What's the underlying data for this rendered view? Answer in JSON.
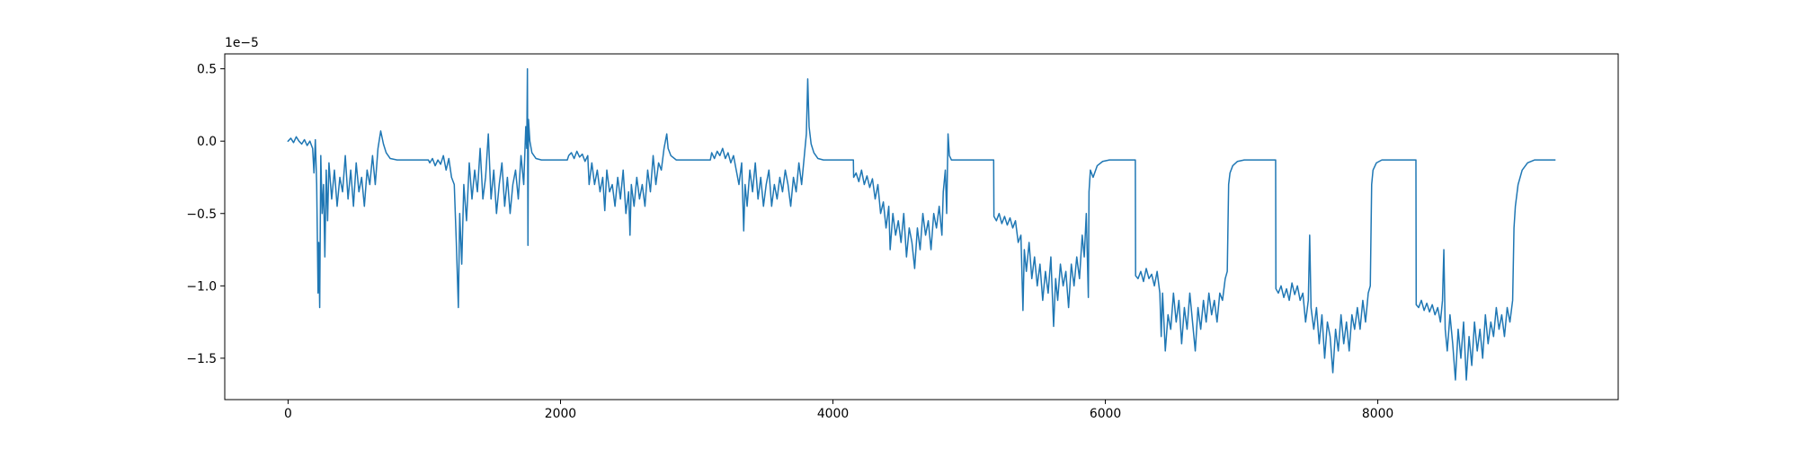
{
  "chart_data": {
    "type": "line",
    "offset_text": "1e−5",
    "x": [
      0,
      20,
      40,
      60,
      80,
      100,
      120,
      140,
      160,
      180,
      190,
      200,
      210,
      220,
      225,
      232,
      240,
      250,
      260,
      270,
      280,
      290,
      300,
      320,
      340,
      360,
      380,
      400,
      420,
      440,
      460,
      480,
      500,
      520,
      540,
      560,
      580,
      600,
      620,
      640,
      660,
      680,
      700,
      720,
      750,
      800,
      1030,
      1040,
      1060,
      1080,
      1100,
      1120,
      1140,
      1160,
      1180,
      1200,
      1220,
      1235,
      1250,
      1260,
      1275,
      1290,
      1310,
      1330,
      1350,
      1370,
      1390,
      1410,
      1430,
      1450,
      1470,
      1490,
      1510,
      1530,
      1550,
      1570,
      1590,
      1610,
      1630,
      1650,
      1670,
      1690,
      1710,
      1730,
      1745,
      1752,
      1757,
      1761,
      1765,
      1775,
      1790,
      1820,
      1860,
      2050,
      2060,
      2080,
      2100,
      2120,
      2140,
      2160,
      2180,
      2200,
      2210,
      2230,
      2250,
      2270,
      2290,
      2310,
      2325,
      2340,
      2360,
      2380,
      2400,
      2420,
      2440,
      2460,
      2480,
      2500,
      2510,
      2520,
      2540,
      2560,
      2580,
      2600,
      2620,
      2640,
      2660,
      2680,
      2700,
      2720,
      2740,
      2760,
      2780,
      2790,
      2810,
      2850,
      3100,
      3110,
      3130,
      3150,
      3170,
      3190,
      3210,
      3230,
      3250,
      3270,
      3290,
      3310,
      3330,
      3345,
      3355,
      3370,
      3390,
      3410,
      3430,
      3450,
      3470,
      3490,
      3510,
      3530,
      3550,
      3570,
      3590,
      3610,
      3630,
      3650,
      3670,
      3690,
      3710,
      3730,
      3750,
      3770,
      3790,
      3805,
      3815,
      3825,
      3840,
      3860,
      3890,
      3930,
      4150,
      4152,
      4170,
      4190,
      4210,
      4230,
      4250,
      4270,
      4290,
      4310,
      4330,
      4350,
      4370,
      4390,
      4410,
      4420,
      4440,
      4460,
      4480,
      4500,
      4520,
      4540,
      4560,
      4580,
      4600,
      4620,
      4640,
      4660,
      4680,
      4700,
      4720,
      4740,
      4760,
      4780,
      4800,
      4810,
      4825,
      4835,
      4845,
      4855,
      4870,
      5180,
      5182,
      5200,
      5220,
      5240,
      5260,
      5280,
      5300,
      5320,
      5340,
      5360,
      5380,
      5395,
      5405,
      5420,
      5440,
      5460,
      5480,
      5500,
      5520,
      5540,
      5560,
      5580,
      5600,
      5620,
      5635,
      5650,
      5670,
      5690,
      5710,
      5730,
      5750,
      5770,
      5790,
      5810,
      5830,
      5845,
      5860,
      5875,
      5880,
      5890,
      5910,
      5940,
      5980,
      6030,
      6220,
      6222,
      6240,
      6260,
      6280,
      6300,
      6320,
      6340,
      6360,
      6380,
      6400,
      6410,
      6420,
      6440,
      6460,
      6480,
      6500,
      6520,
      6540,
      6560,
      6580,
      6600,
      6620,
      6640,
      6660,
      6680,
      6700,
      6720,
      6740,
      6760,
      6780,
      6800,
      6820,
      6840,
      6860,
      6880,
      6895,
      6905,
      6915,
      6935,
      6970,
      7020,
      7250,
      7252,
      7270,
      7290,
      7310,
      7330,
      7350,
      7370,
      7390,
      7410,
      7430,
      7450,
      7470,
      7490,
      7500,
      7510,
      7530,
      7550,
      7570,
      7590,
      7610,
      7630,
      7650,
      7670,
      7690,
      7710,
      7730,
      7750,
      7770,
      7790,
      7810,
      7830,
      7850,
      7870,
      7890,
      7910,
      7930,
      7945,
      7955,
      7965,
      7990,
      8030,
      8280,
      8282,
      8300,
      8320,
      8340,
      8360,
      8380,
      8400,
      8420,
      8440,
      8460,
      8475,
      8485,
      8495,
      8510,
      8530,
      8550,
      8570,
      8590,
      8610,
      8630,
      8650,
      8670,
      8690,
      8710,
      8730,
      8750,
      8770,
      8790,
      8810,
      8830,
      8850,
      8870,
      8890,
      8910,
      8930,
      8950,
      8970,
      8990,
      9000,
      9010,
      9030,
      9060,
      9100,
      9150,
      9300
    ],
    "series": [
      {
        "color": "#1f77b4",
        "values": [
          0,
          0.02,
          -0.01,
          0.03,
          0,
          -0.02,
          0.01,
          -0.03,
          0,
          -0.05,
          -0.22,
          0.01,
          -0.3,
          -1.05,
          -0.7,
          -1.15,
          -0.1,
          -0.5,
          -0.3,
          -0.8,
          -0.2,
          -0.55,
          -0.15,
          -0.4,
          -0.2,
          -0.45,
          -0.25,
          -0.35,
          -0.1,
          -0.4,
          -0.2,
          -0.45,
          -0.15,
          -0.35,
          -0.25,
          -0.45,
          -0.2,
          -0.3,
          -0.1,
          -0.3,
          -0.05,
          0.07,
          -0.02,
          -0.08,
          -0.12,
          -0.13,
          -0.13,
          -0.15,
          -0.12,
          -0.17,
          -0.13,
          -0.16,
          -0.1,
          -0.2,
          -0.12,
          -0.25,
          -0.3,
          -0.7,
          -1.15,
          -0.5,
          -0.85,
          -0.3,
          -0.55,
          -0.15,
          -0.4,
          -0.2,
          -0.35,
          -0.05,
          -0.4,
          -0.25,
          0.05,
          -0.4,
          -0.2,
          -0.5,
          -0.3,
          -0.15,
          -0.45,
          -0.25,
          -0.5,
          -0.3,
          -0.2,
          -0.4,
          -0.1,
          -0.3,
          0.1,
          -0.05,
          0.5,
          -0.72,
          0.15,
          0,
          -0.08,
          -0.12,
          -0.13,
          -0.13,
          -0.1,
          -0.08,
          -0.12,
          -0.07,
          -0.11,
          -0.09,
          -0.14,
          -0.1,
          -0.3,
          -0.15,
          -0.3,
          -0.2,
          -0.35,
          -0.25,
          -0.48,
          -0.2,
          -0.35,
          -0.3,
          -0.45,
          -0.25,
          -0.4,
          -0.2,
          -0.5,
          -0.35,
          -0.65,
          -0.3,
          -0.45,
          -0.25,
          -0.4,
          -0.3,
          -0.45,
          -0.2,
          -0.35,
          -0.1,
          -0.3,
          -0.15,
          -0.2,
          -0.05,
          0.05,
          -0.05,
          -0.1,
          -0.13,
          -0.13,
          -0.08,
          -0.12,
          -0.07,
          -0.1,
          -0.05,
          -0.12,
          -0.08,
          -0.15,
          -0.1,
          -0.2,
          -0.3,
          -0.15,
          -0.62,
          -0.3,
          -0.45,
          -0.2,
          -0.35,
          -0.15,
          -0.4,
          -0.25,
          -0.45,
          -0.3,
          -0.2,
          -0.45,
          -0.3,
          -0.4,
          -0.25,
          -0.35,
          -0.2,
          -0.3,
          -0.45,
          -0.25,
          -0.35,
          -0.15,
          -0.3,
          -0.1,
          0.05,
          0.43,
          0.1,
          -0.02,
          -0.08,
          -0.12,
          -0.13,
          -0.13,
          -0.25,
          -0.22,
          -0.28,
          -0.2,
          -0.3,
          -0.24,
          -0.32,
          -0.26,
          -0.4,
          -0.3,
          -0.5,
          -0.42,
          -0.6,
          -0.45,
          -0.75,
          -0.5,
          -0.65,
          -0.55,
          -0.7,
          -0.5,
          -0.8,
          -0.6,
          -0.7,
          -0.88,
          -0.6,
          -0.75,
          -0.5,
          -0.65,
          -0.55,
          -0.75,
          -0.5,
          -0.6,
          -0.45,
          -0.65,
          -0.35,
          -0.2,
          -0.5,
          0.05,
          -0.1,
          -0.13,
          -0.13,
          -0.52,
          -0.55,
          -0.5,
          -0.57,
          -0.52,
          -0.58,
          -0.53,
          -0.6,
          -0.55,
          -0.7,
          -0.65,
          -1.17,
          -0.75,
          -0.9,
          -0.7,
          -0.95,
          -0.8,
          -1.0,
          -0.85,
          -1.1,
          -0.9,
          -1.05,
          -0.8,
          -1.28,
          -0.95,
          -1.1,
          -0.85,
          -1.0,
          -0.9,
          -1.15,
          -0.85,
          -1.0,
          -0.8,
          -0.95,
          -0.65,
          -0.8,
          -0.5,
          -1.08,
          -0.35,
          -0.2,
          -0.25,
          -0.17,
          -0.14,
          -0.13,
          -0.13,
          -0.93,
          -0.95,
          -0.9,
          -0.97,
          -0.88,
          -0.95,
          -0.92,
          -1.0,
          -0.9,
          -1.05,
          -1.35,
          -1.05,
          -1.45,
          -1.2,
          -1.3,
          -1.05,
          -1.25,
          -1.1,
          -1.4,
          -1.15,
          -1.3,
          -1.05,
          -1.25,
          -1.45,
          -1.15,
          -1.3,
          -1.1,
          -1.25,
          -1.05,
          -1.2,
          -1.1,
          -1.25,
          -1.05,
          -1.1,
          -0.95,
          -0.9,
          -0.3,
          -0.22,
          -0.17,
          -0.14,
          -0.13,
          -0.13,
          -1.02,
          -1.05,
          -1.0,
          -1.08,
          -1.02,
          -1.1,
          -0.98,
          -1.06,
          -1.0,
          -1.1,
          -1.05,
          -1.25,
          -1.1,
          -0.65,
          -1.15,
          -1.3,
          -1.15,
          -1.4,
          -1.2,
          -1.5,
          -1.25,
          -1.35,
          -1.6,
          -1.3,
          -1.45,
          -1.2,
          -1.4,
          -1.25,
          -1.45,
          -1.2,
          -1.3,
          -1.15,
          -1.3,
          -1.1,
          -1.25,
          -1.05,
          -1.0,
          -0.3,
          -0.2,
          -0.15,
          -0.13,
          -0.13,
          -1.13,
          -1.15,
          -1.1,
          -1.17,
          -1.12,
          -1.18,
          -1.13,
          -1.2,
          -1.15,
          -1.25,
          -1.1,
          -0.75,
          -1.3,
          -1.45,
          -1.2,
          -1.4,
          -1.65,
          -1.3,
          -1.5,
          -1.25,
          -1.65,
          -1.35,
          -1.55,
          -1.25,
          -1.45,
          -1.3,
          -1.5,
          -1.2,
          -1.4,
          -1.25,
          -1.35,
          -1.15,
          -1.3,
          -1.2,
          -1.35,
          -1.15,
          -1.25,
          -1.1,
          -0.6,
          -0.45,
          -0.3,
          -0.2,
          -0.15,
          -0.13,
          -0.13
        ]
      }
    ],
    "xlim": [
      -465,
      9765
    ],
    "xticks": [
      0,
      2000,
      4000,
      6000,
      8000
    ],
    "ylim": [
      -1.786,
      0.603
    ],
    "yticks": [
      {
        "value": -1.5,
        "label": "−1.5"
      },
      {
        "value": -1.0,
        "label": "−1.0"
      },
      {
        "value": -0.5,
        "label": "−0.5"
      },
      {
        "value": 0.0,
        "label": "0.0"
      },
      0.5
    ],
    "grid": false
  }
}
